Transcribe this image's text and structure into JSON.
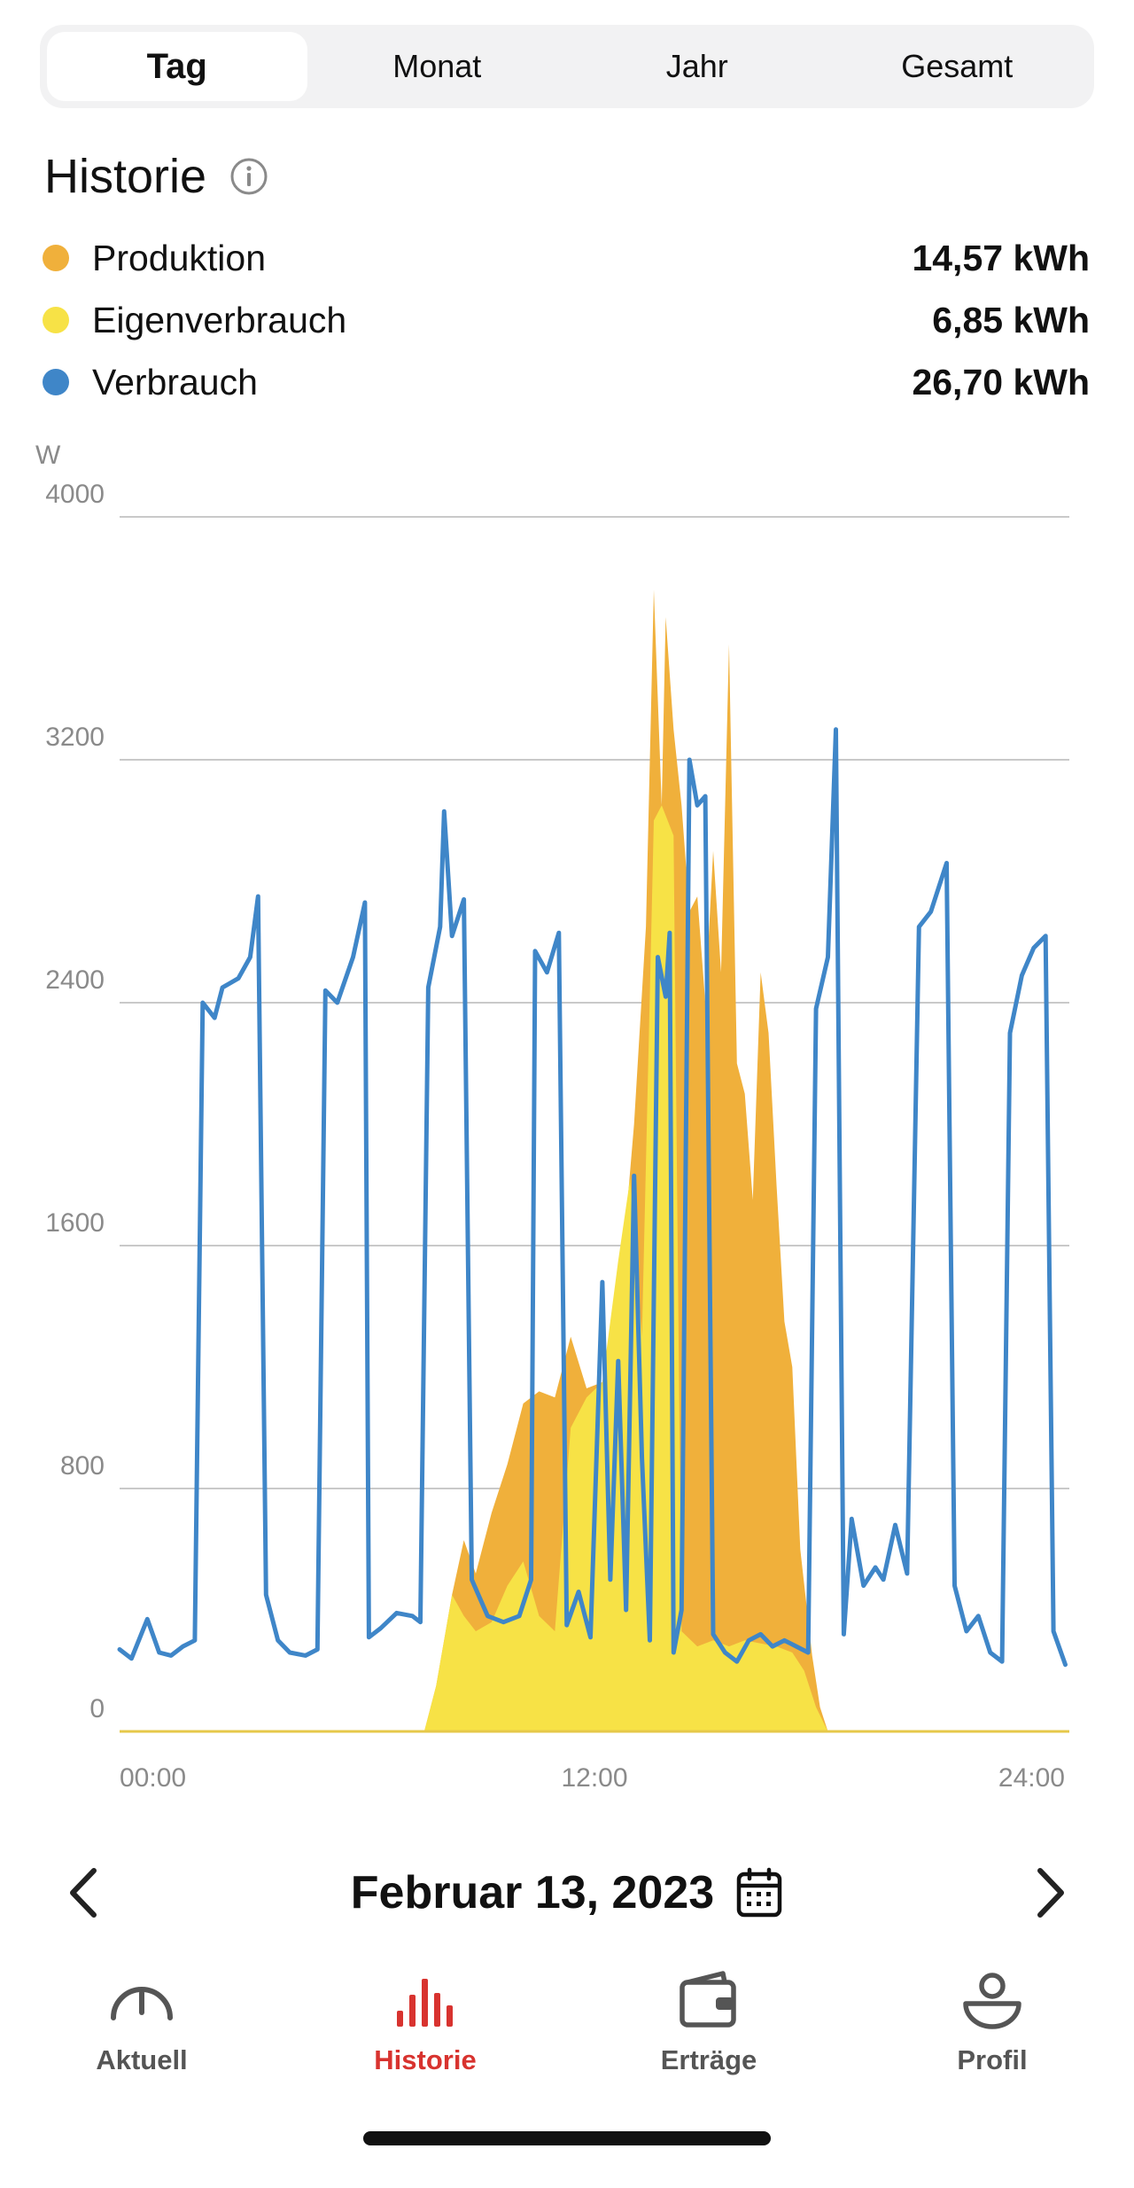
{
  "tabs": [
    {
      "label": "Tag",
      "active": true
    },
    {
      "label": "Monat",
      "active": false
    },
    {
      "label": "Jahr",
      "active": false
    },
    {
      "label": "Gesamt",
      "active": false
    }
  ],
  "history": {
    "title": "Historie",
    "info_icon": "info-circle-icon",
    "legend": [
      {
        "name": "Produktion",
        "value": "14,57 kWh",
        "color": "#f0b03b"
      },
      {
        "name": "Eigenverbrauch",
        "value": "6,85 kWh",
        "color": "#f7e246"
      },
      {
        "name": "Verbrauch",
        "value": "26,70 kWh",
        "color": "#3f86c8"
      }
    ]
  },
  "chart_data": {
    "type": "area",
    "ylabel": "W",
    "ylim": [
      0,
      4000
    ],
    "yticks": [
      "4000",
      "3200",
      "2400",
      "1600",
      "800",
      "0"
    ],
    "ytick_values": [
      4000,
      3200,
      2400,
      1600,
      800,
      0
    ],
    "xlim": [
      0,
      24
    ],
    "xticks": [
      "00:00",
      "12:00",
      "24:00"
    ],
    "xtick_values": [
      0,
      12,
      24
    ],
    "grid": true,
    "series": [
      {
        "name": "Produktion",
        "style": "area",
        "color": "#f0b03b",
        "points": [
          [
            0,
            0
          ],
          [
            7.7,
            0
          ],
          [
            8.0,
            150
          ],
          [
            8.4,
            450
          ],
          [
            8.7,
            630
          ],
          [
            9.0,
            520
          ],
          [
            9.4,
            720
          ],
          [
            9.8,
            880
          ],
          [
            10.2,
            1080
          ],
          [
            10.6,
            1120
          ],
          [
            11.0,
            1100
          ],
          [
            11.4,
            1300
          ],
          [
            11.8,
            1130
          ],
          [
            12.2,
            1150
          ],
          [
            12.6,
            1380
          ],
          [
            13.0,
            2000
          ],
          [
            13.3,
            2650
          ],
          [
            13.5,
            3760
          ],
          [
            13.7,
            3050
          ],
          [
            13.8,
            3670
          ],
          [
            14.0,
            3300
          ],
          [
            14.2,
            3050
          ],
          [
            14.4,
            2700
          ],
          [
            14.6,
            2750
          ],
          [
            14.8,
            2400
          ],
          [
            15.0,
            2900
          ],
          [
            15.2,
            2500
          ],
          [
            15.4,
            3580
          ],
          [
            15.6,
            2200
          ],
          [
            15.8,
            2100
          ],
          [
            16.0,
            1750
          ],
          [
            16.2,
            2500
          ],
          [
            16.4,
            2300
          ],
          [
            16.6,
            1800
          ],
          [
            16.8,
            1350
          ],
          [
            17.0,
            1200
          ],
          [
            17.2,
            600
          ],
          [
            17.5,
            250
          ],
          [
            17.7,
            80
          ],
          [
            17.9,
            0
          ],
          [
            24,
            0
          ]
        ]
      },
      {
        "name": "Eigenverbrauch",
        "style": "area",
        "color": "#f7e246",
        "points": [
          [
            0,
            0
          ],
          [
            7.7,
            0
          ],
          [
            8.0,
            150
          ],
          [
            8.4,
            450
          ],
          [
            8.7,
            380
          ],
          [
            9.0,
            330
          ],
          [
            9.4,
            360
          ],
          [
            9.8,
            480
          ],
          [
            10.2,
            560
          ],
          [
            10.6,
            380
          ],
          [
            11.0,
            330
          ],
          [
            11.4,
            1000
          ],
          [
            11.8,
            1100
          ],
          [
            12.2,
            1150
          ],
          [
            12.6,
            1550
          ],
          [
            12.9,
            1820
          ],
          [
            13.2,
            1300
          ],
          [
            13.5,
            3000
          ],
          [
            13.7,
            3050
          ],
          [
            14.0,
            2950
          ],
          [
            14.2,
            330
          ],
          [
            14.6,
            280
          ],
          [
            15.0,
            300
          ],
          [
            15.4,
            280
          ],
          [
            15.8,
            300
          ],
          [
            16.2,
            290
          ],
          [
            16.6,
            280
          ],
          [
            17.0,
            260
          ],
          [
            17.3,
            200
          ],
          [
            17.6,
            80
          ],
          [
            17.9,
            0
          ],
          [
            24,
            0
          ]
        ]
      },
      {
        "name": "Verbrauch",
        "style": "line",
        "color": "#3f86c8",
        "points": [
          [
            0,
            270
          ],
          [
            0.3,
            240
          ],
          [
            0.7,
            370
          ],
          [
            1.0,
            260
          ],
          [
            1.3,
            250
          ],
          [
            1.6,
            280
          ],
          [
            1.9,
            300
          ],
          [
            2.1,
            2400
          ],
          [
            2.4,
            2350
          ],
          [
            2.6,
            2450
          ],
          [
            3.0,
            2480
          ],
          [
            3.3,
            2550
          ],
          [
            3.5,
            2750
          ],
          [
            3.7,
            450
          ],
          [
            4.0,
            300
          ],
          [
            4.3,
            260
          ],
          [
            4.7,
            250
          ],
          [
            5.0,
            270
          ],
          [
            5.2,
            2440
          ],
          [
            5.5,
            2400
          ],
          [
            5.9,
            2550
          ],
          [
            6.2,
            2730
          ],
          [
            6.3,
            310
          ],
          [
            6.6,
            340
          ],
          [
            7.0,
            390
          ],
          [
            7.4,
            380
          ],
          [
            7.6,
            360
          ],
          [
            7.8,
            2450
          ],
          [
            8.1,
            2650
          ],
          [
            8.2,
            3030
          ],
          [
            8.4,
            2620
          ],
          [
            8.7,
            2740
          ],
          [
            8.9,
            500
          ],
          [
            9.3,
            380
          ],
          [
            9.7,
            360
          ],
          [
            10.1,
            380
          ],
          [
            10.4,
            500
          ],
          [
            10.5,
            2570
          ],
          [
            10.8,
            2500
          ],
          [
            11.1,
            2630
          ],
          [
            11.3,
            350
          ],
          [
            11.6,
            460
          ],
          [
            11.9,
            310
          ],
          [
            12.2,
            1480
          ],
          [
            12.4,
            500
          ],
          [
            12.6,
            1220
          ],
          [
            12.8,
            400
          ],
          [
            13.0,
            1830
          ],
          [
            13.2,
            900
          ],
          [
            13.4,
            300
          ],
          [
            13.6,
            2550
          ],
          [
            13.8,
            2420
          ],
          [
            13.9,
            2630
          ],
          [
            14.0,
            260
          ],
          [
            14.2,
            400
          ],
          [
            14.4,
            3200
          ],
          [
            14.6,
            3050
          ],
          [
            14.8,
            3080
          ],
          [
            15.0,
            320
          ],
          [
            15.3,
            260
          ],
          [
            15.6,
            230
          ],
          [
            15.9,
            300
          ],
          [
            16.2,
            320
          ],
          [
            16.5,
            280
          ],
          [
            16.8,
            300
          ],
          [
            17.1,
            280
          ],
          [
            17.4,
            260
          ],
          [
            17.6,
            2380
          ],
          [
            17.9,
            2550
          ],
          [
            18.1,
            3300
          ],
          [
            18.3,
            320
          ],
          [
            18.5,
            700
          ],
          [
            18.8,
            480
          ],
          [
            19.1,
            540
          ],
          [
            19.3,
            500
          ],
          [
            19.6,
            680
          ],
          [
            19.9,
            520
          ],
          [
            20.2,
            2650
          ],
          [
            20.5,
            2700
          ],
          [
            20.9,
            2860
          ],
          [
            21.1,
            480
          ],
          [
            21.4,
            330
          ],
          [
            21.7,
            380
          ],
          [
            22.0,
            260
          ],
          [
            22.3,
            230
          ],
          [
            22.5,
            2300
          ],
          [
            22.8,
            2490
          ],
          [
            23.1,
            2580
          ],
          [
            23.4,
            2620
          ],
          [
            23.6,
            330
          ],
          [
            23.9,
            220
          ],
          [
            24.2,
            300
          ],
          [
            24.5,
            420
          ],
          [
            24.8,
            380
          ]
        ]
      }
    ]
  },
  "date_nav": {
    "prev_icon": "chevron-left-icon",
    "date": "Februar 13, 2023",
    "calendar_icon": "calendar-icon",
    "next_icon": "chevron-right-icon"
  },
  "bottom_nav": [
    {
      "label": "Aktuell",
      "icon": "gauge-icon",
      "active": false
    },
    {
      "label": "Historie",
      "icon": "bar-chart-icon",
      "active": true
    },
    {
      "label": "Erträge",
      "icon": "wallet-icon",
      "active": false
    },
    {
      "label": "Profil",
      "icon": "person-icon",
      "active": false
    }
  ],
  "colors": {
    "accent_red": "#d8332f",
    "grid": "#c9c9c9",
    "axis_text": "#8a8a8a"
  }
}
